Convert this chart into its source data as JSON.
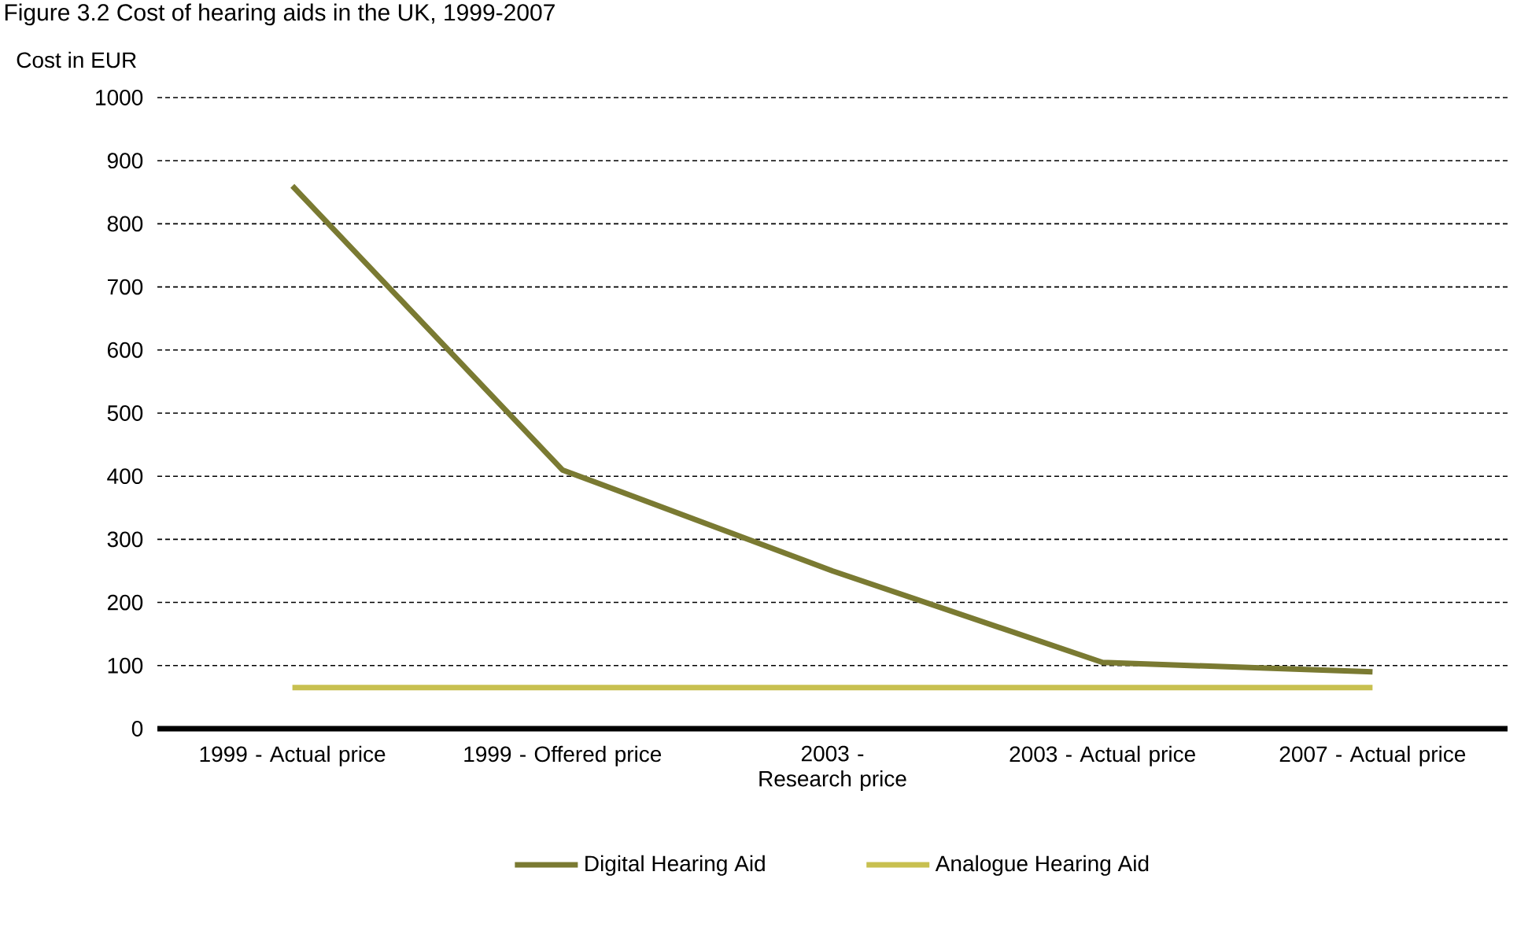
{
  "chart_data": {
    "type": "line",
    "title": "Figure 3.2 Cost of hearing aids in the UK, 1999-2007",
    "ylabel": "Cost in EUR",
    "categories": [
      "1999 - Actual price",
      "1999 - Offered price",
      "2003 - Research price",
      "2003 - Actual price",
      "2007 - Actual price"
    ],
    "series": [
      {
        "name": "Digital Hearing Aid",
        "color": "#7a7a32",
        "values": [
          860,
          410,
          250,
          105,
          90
        ]
      },
      {
        "name": "Analogue Hearing Aid",
        "color": "#c8c050",
        "values": [
          65,
          65,
          65,
          65,
          65
        ]
      }
    ],
    "ylim": [
      0,
      1000
    ],
    "yticks": [
      0,
      100,
      200,
      300,
      400,
      500,
      600,
      700,
      800,
      900,
      1000
    ],
    "grid": "y",
    "legend": "bottom",
    "marker": "none",
    "line_style": "solid"
  }
}
